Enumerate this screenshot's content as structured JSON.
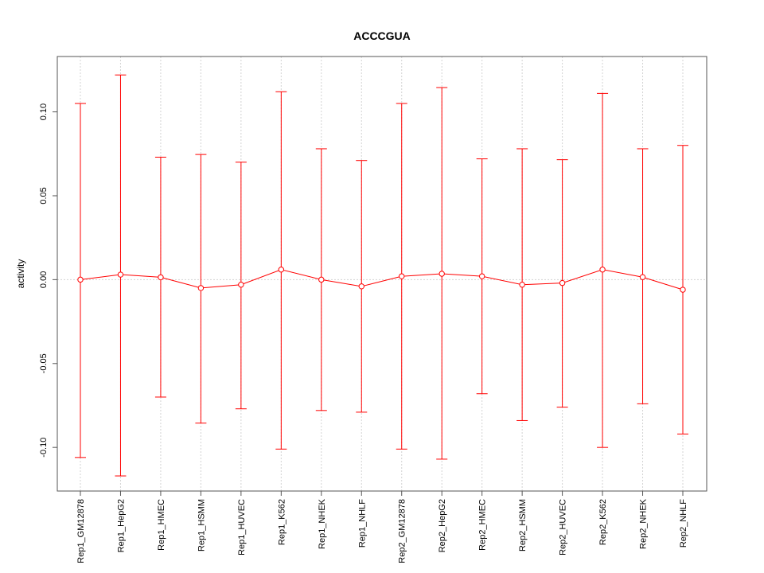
{
  "chart_data": {
    "type": "line",
    "title": "ACCCGUA",
    "xlabel": "",
    "ylabel": "activity",
    "ylim": [
      -0.126,
      0.133
    ],
    "yticks": [
      -0.1,
      -0.05,
      0.0,
      0.05,
      0.1
    ],
    "ytick_labels": [
      "-0.10",
      "-0.05",
      "0.00",
      "0.05",
      "0.10"
    ],
    "grid": true,
    "categories": [
      "Rep1_GM12878",
      "Rep1_HepG2",
      "Rep1_HMEC",
      "Rep1_HSMM",
      "Rep1_HUVEC",
      "Rep1_K562",
      "Rep1_NHEK",
      "Rep1_NHLF",
      "Rep2_GM12878",
      "Rep2_HepG2",
      "Rep2_HMEC",
      "Rep2_HSMM",
      "Rep2_HUVEC",
      "Rep2_K562",
      "Rep2_NHEK",
      "Rep2_NHLF"
    ],
    "series": [
      {
        "name": "activity",
        "color": "#ff0000",
        "values": [
          0.0,
          0.003,
          0.0014,
          -0.005,
          -0.003,
          0.006,
          0.0,
          -0.004,
          0.002,
          0.0035,
          0.002,
          -0.003,
          -0.002,
          0.006,
          0.0015,
          -0.006
        ],
        "upper": [
          0.105,
          0.122,
          0.073,
          0.0746,
          0.07,
          0.112,
          0.078,
          0.071,
          0.105,
          0.1145,
          0.072,
          0.078,
          0.0715,
          0.111,
          0.078,
          0.08
        ],
        "lower": [
          -0.106,
          -0.117,
          -0.07,
          -0.0855,
          -0.077,
          -0.101,
          -0.078,
          -0.079,
          -0.101,
          -0.107,
          -0.068,
          -0.084,
          -0.076,
          -0.1,
          -0.074,
          -0.092
        ]
      }
    ]
  }
}
